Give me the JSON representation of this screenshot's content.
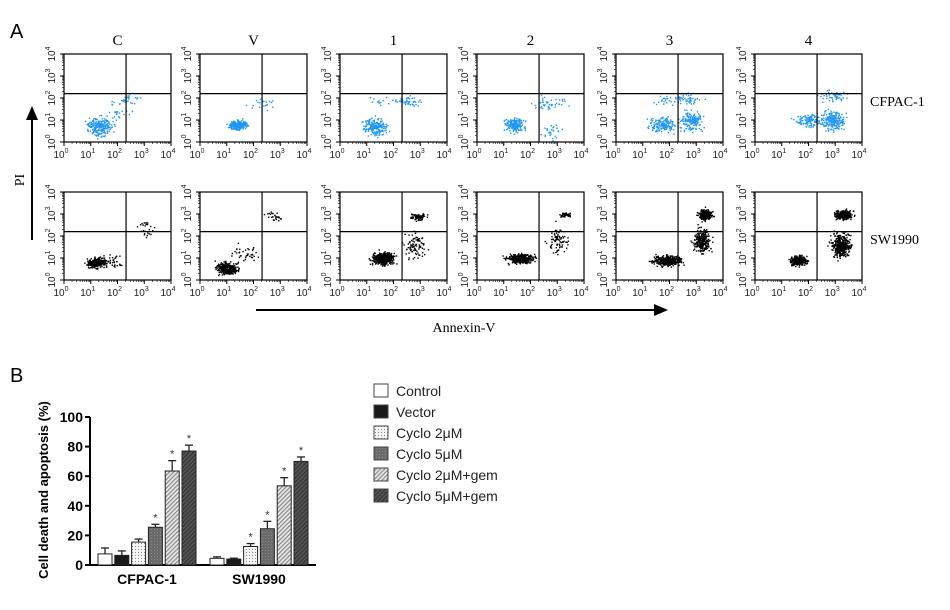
{
  "panel_a": {
    "label": "A",
    "columns": [
      "C",
      "V",
      "1",
      "2",
      "3",
      "4"
    ],
    "rows": [
      "CFPAC-1",
      "SW1990"
    ],
    "row_colors": [
      "#2196f3",
      "#000000"
    ],
    "y_axis_label": "PI",
    "x_axis_label": "Annexin-V",
    "tick_labels": [
      "10",
      "10",
      "10",
      "10",
      "10"
    ],
    "tick_exponents": [
      "0",
      "1",
      "2",
      "3",
      "4"
    ]
  },
  "chart_data": {
    "type": "bar",
    "panel_label": "B",
    "title": "",
    "xlabel": "",
    "ylabel": "Cell death and apoptosis (%)",
    "ylim": [
      0,
      100
    ],
    "yticks": [
      "0",
      "20",
      "40",
      "60",
      "80",
      "100"
    ],
    "categories": [
      "CFPAC-1",
      "SW1990"
    ],
    "legend_position": "right",
    "significance_marker": "*",
    "series": [
      {
        "name": "Control",
        "values": [
          7.5,
          4.5
        ],
        "errors": [
          4,
          1
        ],
        "significant": [
          false,
          false
        ],
        "fill": "white"
      },
      {
        "name": "Vector",
        "values": [
          6.5,
          4
        ],
        "errors": [
          3,
          0.6
        ],
        "significant": [
          false,
          false
        ],
        "fill": "black"
      },
      {
        "name": "Cyclo 2μM",
        "values": [
          15.5,
          12.5
        ],
        "errors": [
          2,
          2
        ],
        "significant": [
          false,
          true
        ],
        "fill": "dots"
      },
      {
        "name": "Cyclo 5μM",
        "values": [
          25.5,
          24.5
        ],
        "errors": [
          2,
          5
        ],
        "significant": [
          true,
          true
        ],
        "fill": "darkdots"
      },
      {
        "name": "Cyclo 2μM+gem",
        "values": [
          63.5,
          53.5
        ],
        "errors": [
          7,
          5.5
        ],
        "significant": [
          true,
          true
        ],
        "fill": "lighthatch"
      },
      {
        "name": "Cyclo 5μM+gem",
        "values": [
          77,
          70
        ],
        "errors": [
          4,
          3
        ],
        "significant": [
          true,
          true
        ],
        "fill": "darkhatch"
      }
    ]
  }
}
